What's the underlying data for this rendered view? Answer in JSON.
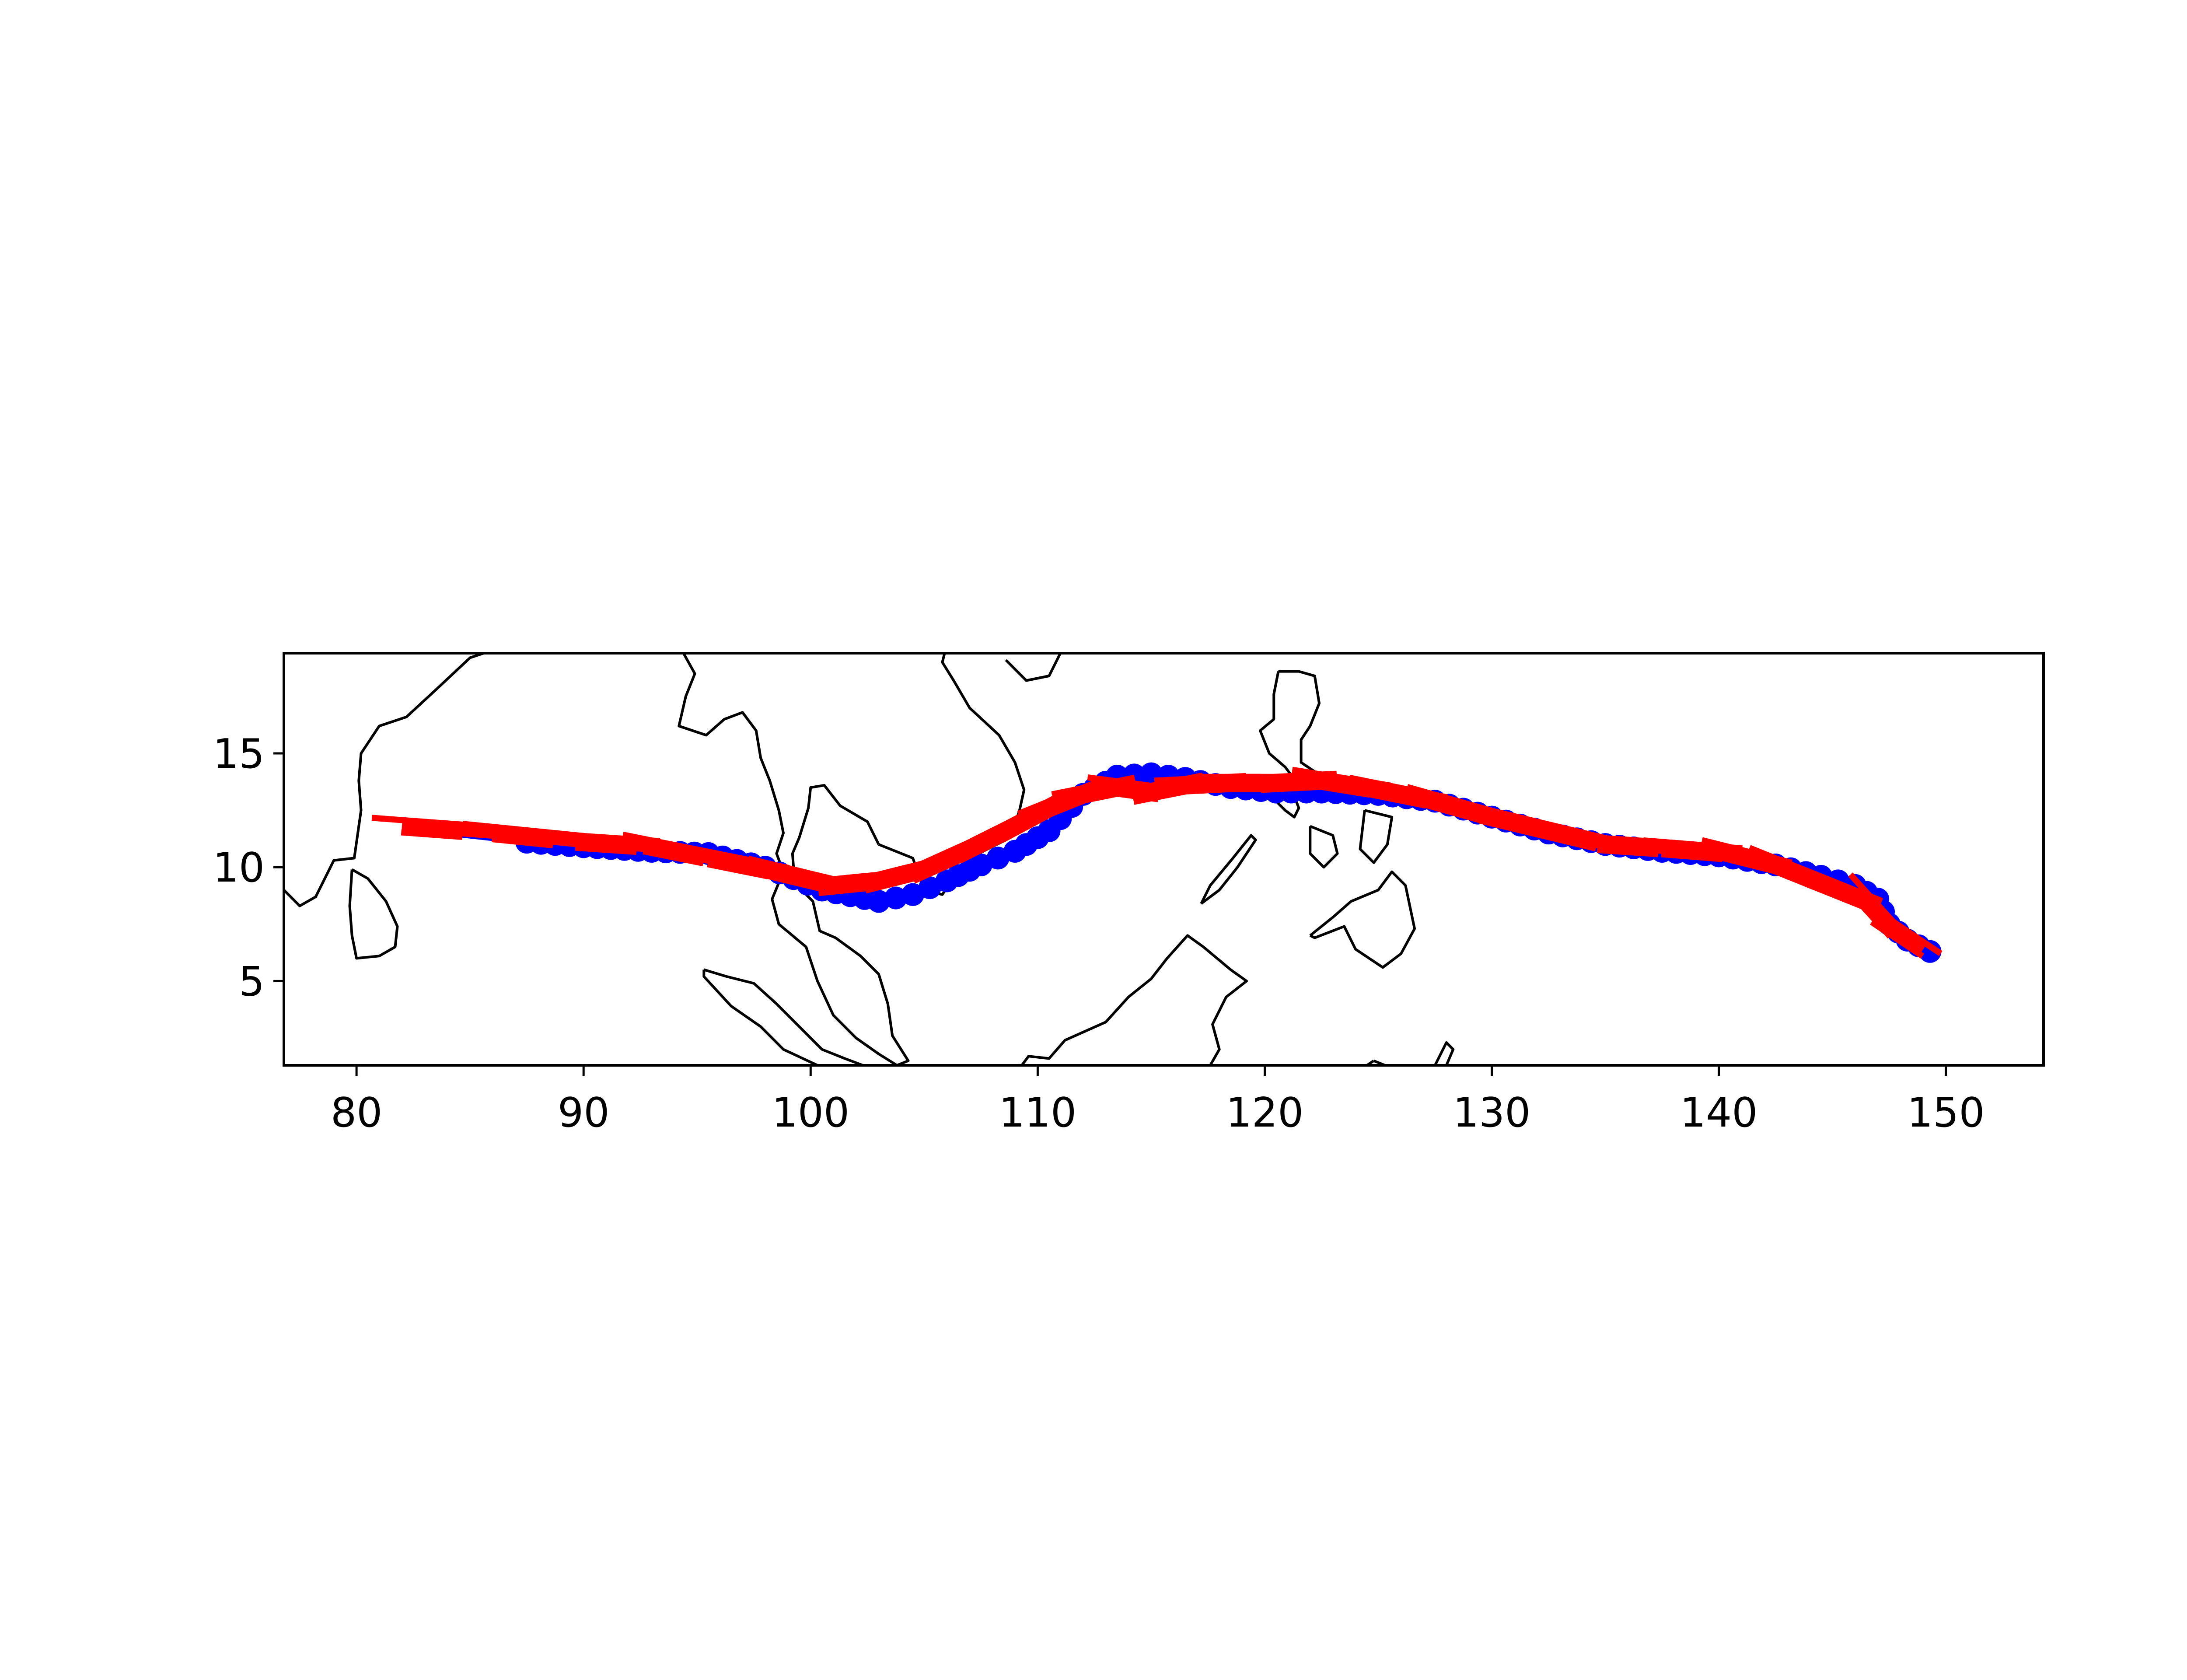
{
  "map": {
    "projection": "plate-carree",
    "extent": {
      "lon": [
        76.8,
        154.3
      ],
      "lat": [
        1.3,
        19.4
      ]
    },
    "xticks": [
      80,
      90,
      100,
      110,
      120,
      130,
      140,
      150
    ],
    "yticks": [
      5,
      10,
      15
    ],
    "coastline_color": "#000000",
    "frame_color": "#000000"
  },
  "chart_data": {
    "type": "line",
    "xlim": [
      76.8,
      154.3
    ],
    "ylim": [
      1.3,
      19.4
    ],
    "grid": false,
    "legend": "none",
    "series": [
      {
        "style": "line-with-circle-markers",
        "color": "#0000ff",
        "x": [
          82.0,
          87.5,
          90.0,
          93.0,
          95.5,
          98.0,
          100.5,
          103.0,
          104.5,
          106.0,
          107.5,
          109.0,
          110.5,
          112.0,
          113.5,
          115.0,
          116.5,
          118.5,
          120.5,
          122.5,
          125.0,
          127.5,
          130.0,
          132.5,
          135.0,
          137.5,
          140.0,
          142.5,
          144.5,
          146.0,
          147.0,
          147.5,
          148.3,
          149.3
        ],
        "y": [
          11.7,
          11.1,
          10.9,
          10.7,
          10.6,
          10.0,
          9.0,
          8.5,
          8.8,
          9.4,
          10.1,
          10.7,
          11.6,
          13.2,
          14.0,
          14.1,
          13.9,
          13.5,
          13.3,
          13.3,
          13.2,
          12.9,
          12.2,
          11.5,
          11.0,
          10.7,
          10.5,
          10.1,
          9.6,
          9.2,
          8.6,
          7.5,
          6.8,
          6.3
        ]
      },
      {
        "style": "red-ticks",
        "color": "#ff0000",
        "x": [
          82.0,
          86.0,
          90.0,
          93.0,
          96.0,
          98.5,
          101.0,
          103.0,
          105.0,
          107.0,
          109.0,
          110.5,
          112.0,
          113.5,
          115.0,
          116.5,
          118.5,
          120.5,
          122.5,
          125.0,
          127.5,
          130.0,
          132.5,
          135.0,
          138.0,
          140.5,
          142.5,
          144.5,
          146.5,
          147.5,
          149.0
        ],
        "y": [
          11.8,
          11.5,
          11.1,
          10.9,
          10.3,
          9.8,
          9.2,
          9.4,
          9.9,
          10.8,
          11.8,
          12.6,
          13.2,
          13.5,
          13.3,
          13.6,
          13.7,
          13.7,
          13.8,
          13.4,
          12.9,
          12.2,
          11.6,
          11.0,
          10.8,
          10.6,
          10.1,
          9.3,
          8.5,
          7.4,
          6.4
        ]
      }
    ]
  }
}
